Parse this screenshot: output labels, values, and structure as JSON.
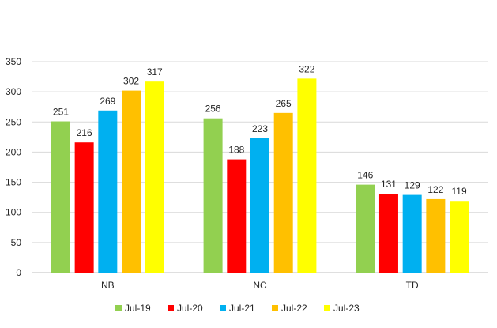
{
  "chart_data": {
    "type": "bar",
    "categories": [
      "NB",
      "NC",
      "TD"
    ],
    "series": [
      {
        "name": "Jul-19",
        "color": "#92d050",
        "values": [
          251,
          256,
          146
        ]
      },
      {
        "name": "Jul-20",
        "color": "#ff0000",
        "values": [
          216,
          188,
          131
        ]
      },
      {
        "name": "Jul-21",
        "color": "#00b0f0",
        "values": [
          269,
          223,
          129
        ]
      },
      {
        "name": "Jul-22",
        "color": "#ffc000",
        "values": [
          302,
          265,
          122
        ]
      },
      {
        "name": "Jul-23",
        "color": "#ffff00",
        "values": [
          317,
          322,
          119
        ]
      }
    ],
    "ylim": [
      0,
      350
    ],
    "yticks": [
      0,
      50,
      100,
      150,
      200,
      250,
      300,
      350
    ],
    "grid": true,
    "legend_position": "bottom",
    "data_labels": true
  }
}
